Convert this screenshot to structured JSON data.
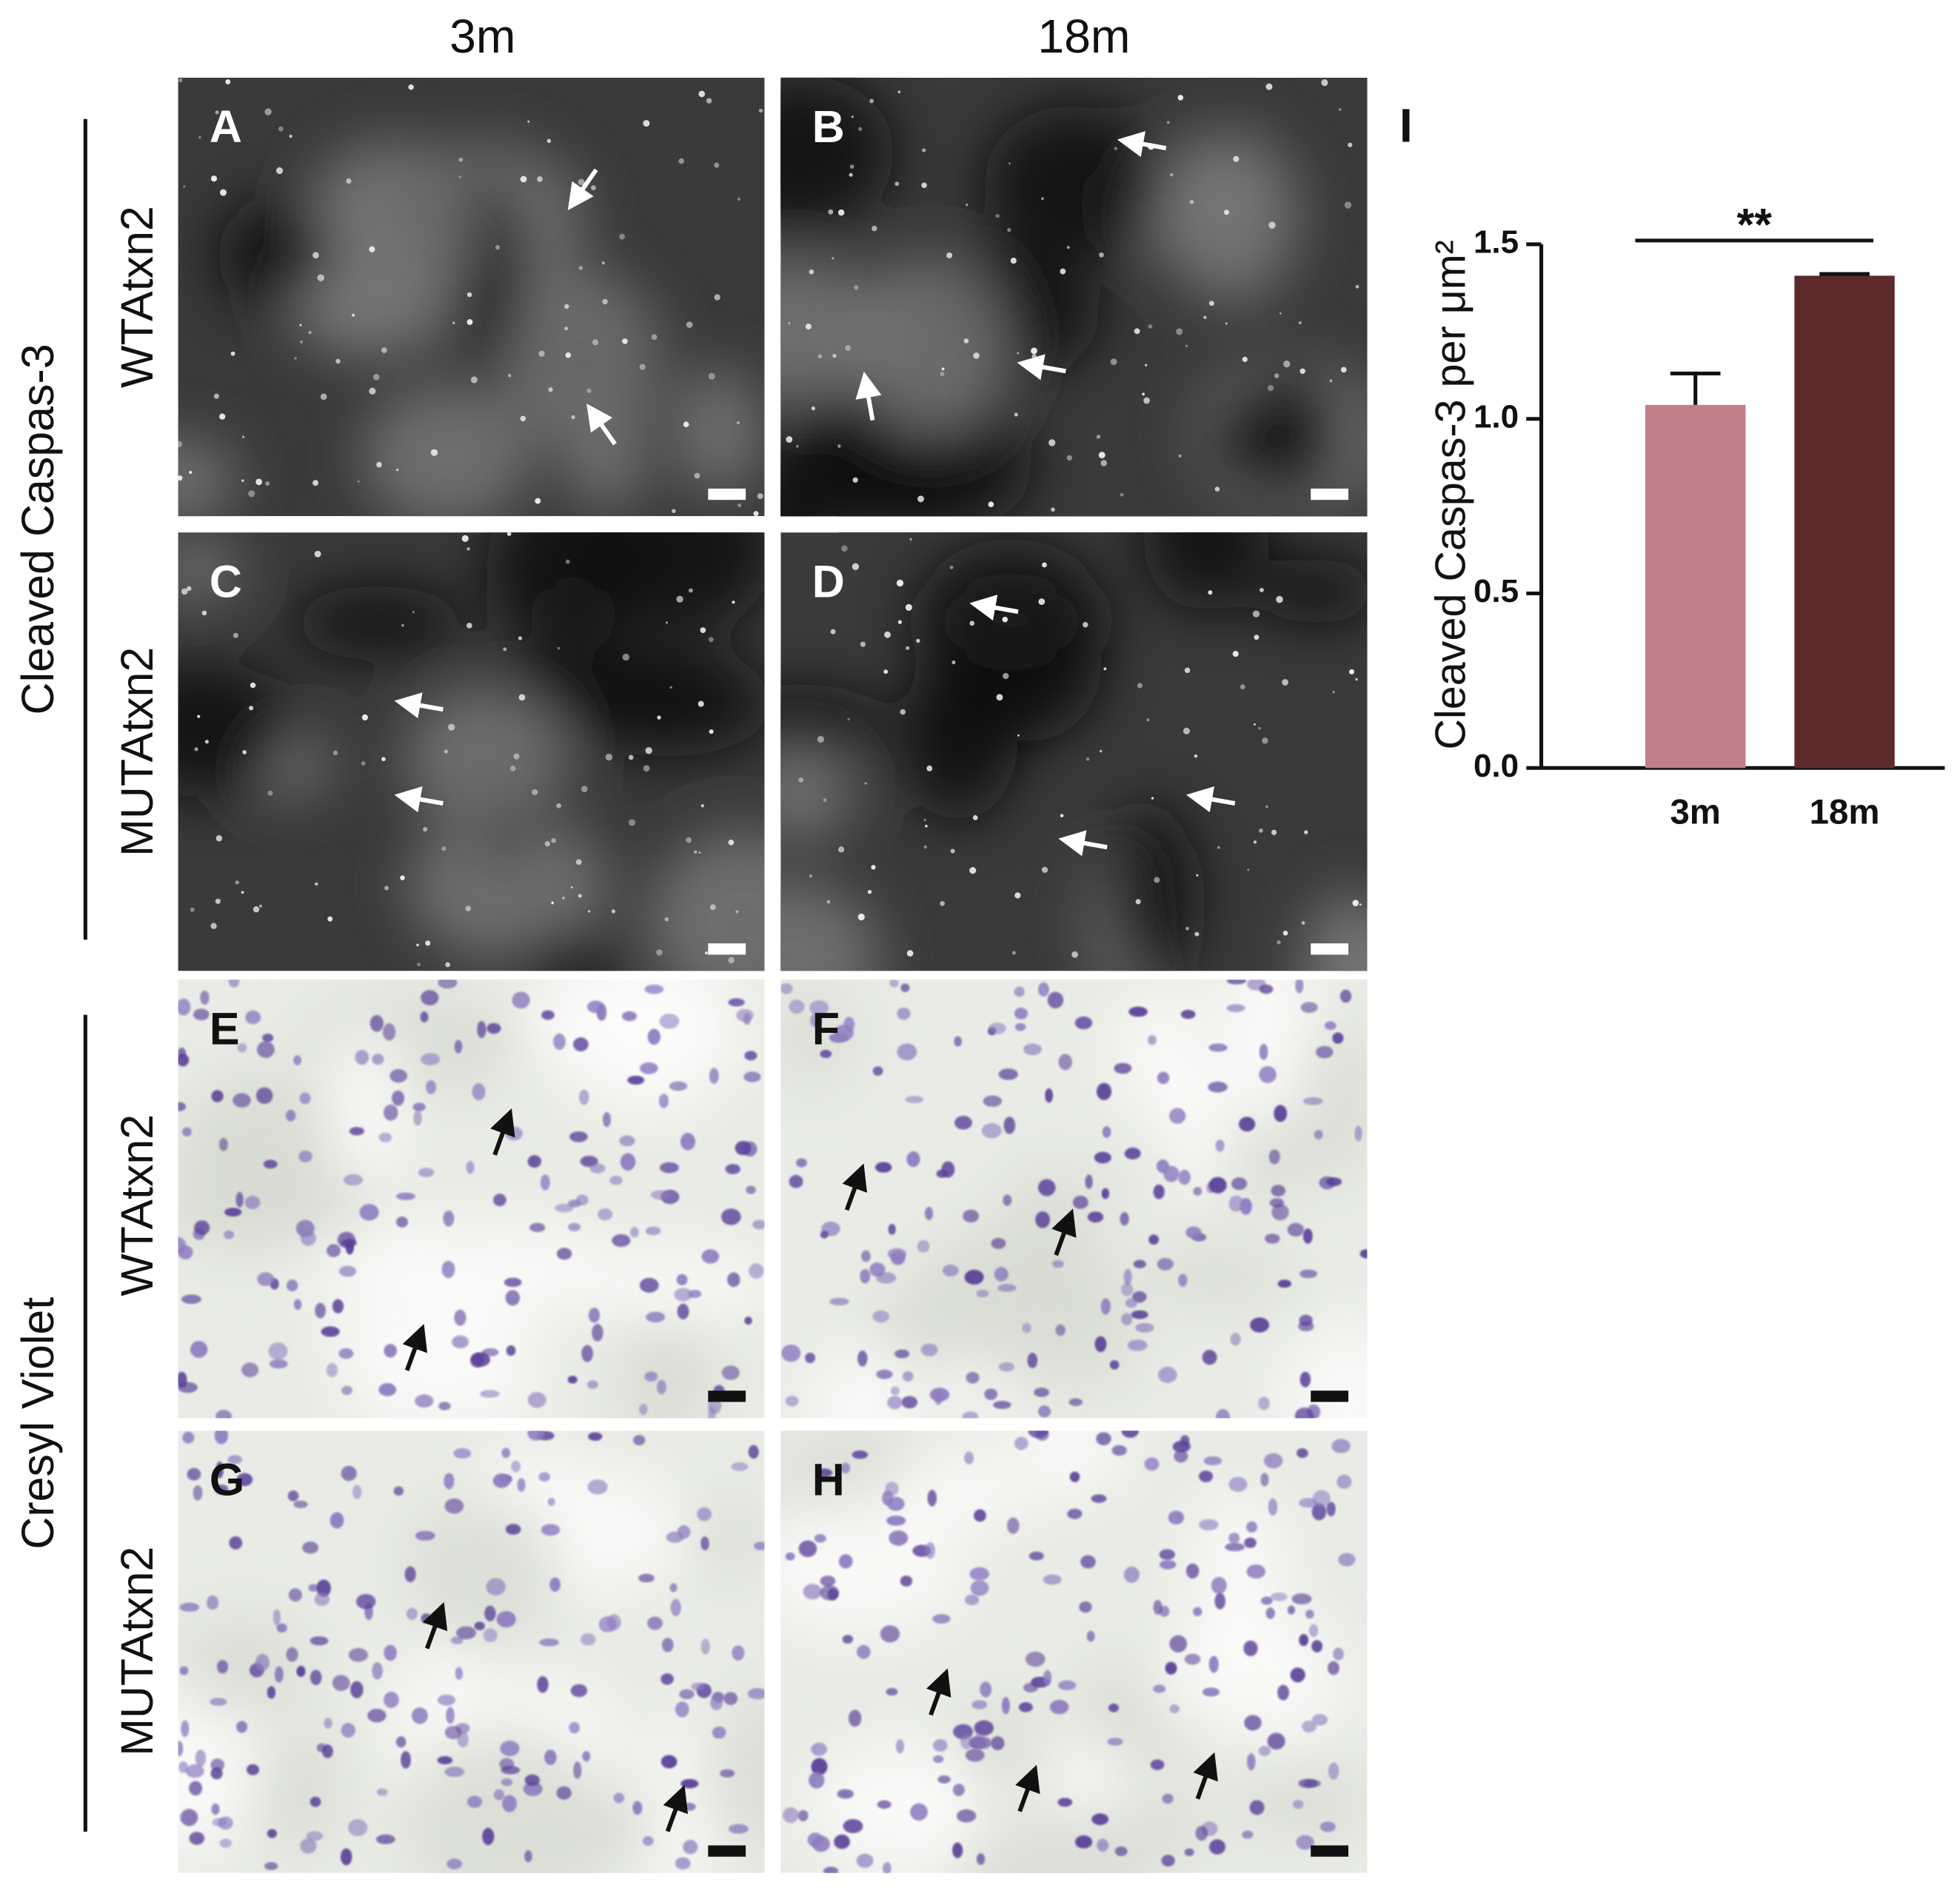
{
  "columns": [
    "3m",
    "18m"
  ],
  "groups": [
    {
      "label": "Cleaved Caspas-3",
      "rows": [
        "WTAtxn2",
        "MUTAtxn2"
      ]
    },
    {
      "label": "Cresyl Violet",
      "rows": [
        "WTAtxn2",
        "MUTAtxn2"
      ]
    }
  ],
  "panels": [
    "A",
    "B",
    "C",
    "D",
    "E",
    "F",
    "G",
    "H"
  ],
  "chart_data": {
    "type": "bar",
    "panel_label": "I",
    "ylabel": "Cleaved Caspas-3 per μm²",
    "categories": [
      "3m",
      "18m"
    ],
    "values": [
      1.04,
      1.41
    ],
    "errors": [
      0.09,
      0.005
    ],
    "colors": [
      "#c07f86",
      "#5e2b2d"
    ],
    "ylim": [
      0,
      1.5
    ],
    "yticks": [
      {
        "value": 0,
        "label": "0.0"
      },
      0.5,
      {
        "value": 1,
        "label": "1.0"
      },
      1.5
    ],
    "annotation": "**"
  }
}
